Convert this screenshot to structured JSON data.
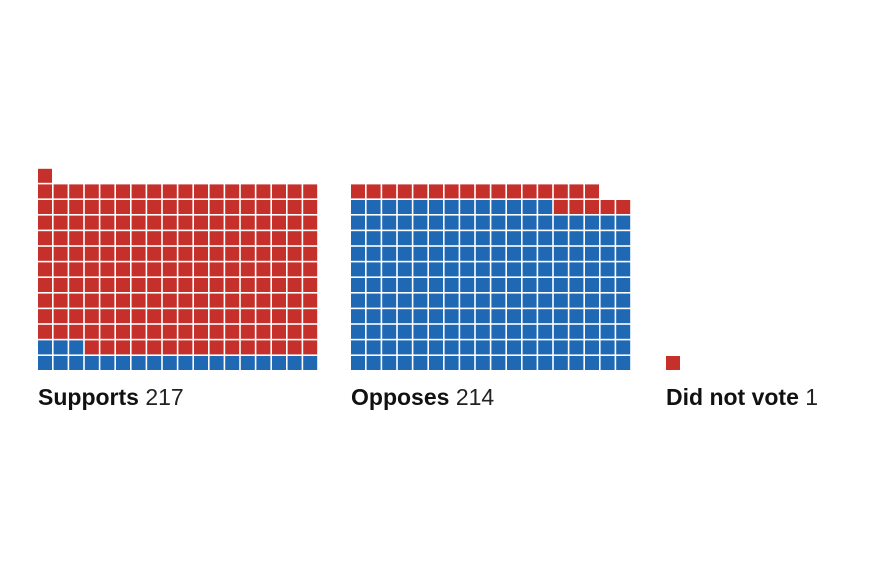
{
  "chart_data": {
    "type": "waffle",
    "colors": {
      "supports_vote_color": "#c5302b",
      "opposes_vote_color": "#1f68b3"
    },
    "grid_columns": 18,
    "fill_order": "bottom-up, left-to-right; blue squares first, then red",
    "groups": [
      {
        "label": "Supports",
        "total": "217",
        "red": 196,
        "blue": 21
      },
      {
        "label": "Opposes",
        "total": "214",
        "red": 21,
        "blue": 193
      },
      {
        "label": "Did not vote",
        "total": "1",
        "red": 1,
        "blue": 0
      }
    ]
  }
}
